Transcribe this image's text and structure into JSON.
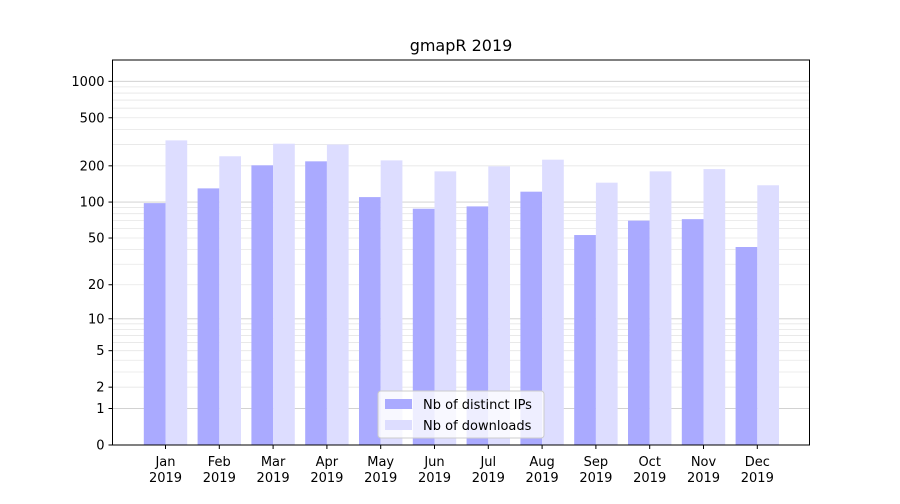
{
  "chart_data": {
    "type": "bar",
    "title": "gmapR 2019",
    "xlabel": "",
    "ylabel": "",
    "y_scale": "symlog",
    "y_ticks": [
      0,
      1,
      2,
      5,
      10,
      20,
      50,
      100,
      200,
      500,
      1000
    ],
    "y_tick_labels": [
      "0",
      "1",
      "2",
      "5",
      "10",
      "20",
      "50",
      "100",
      "200",
      "500",
      "1000"
    ],
    "ylim": [
      0,
      1500
    ],
    "grid": true,
    "legend_position": "bottom-center",
    "categories": [
      [
        "Jan",
        "2019"
      ],
      [
        "Feb",
        "2019"
      ],
      [
        "Mar",
        "2019"
      ],
      [
        "Apr",
        "2019"
      ],
      [
        "May",
        "2019"
      ],
      [
        "Jun",
        "2019"
      ],
      [
        "Jul",
        "2019"
      ],
      [
        "Aug",
        "2019"
      ],
      [
        "Sep",
        "2019"
      ],
      [
        "Oct",
        "2019"
      ],
      [
        "Nov",
        "2019"
      ],
      [
        "Dec",
        "2019"
      ]
    ],
    "series": [
      {
        "name": "Nb of distinct IPs",
        "color": "#aaaaff",
        "values": [
          98,
          130,
          202,
          218,
          110,
          88,
          92,
          122,
          53,
          70,
          72,
          42
        ]
      },
      {
        "name": "Nb of downloads",
        "color": "#ddddff",
        "values": [
          325,
          240,
          305,
          300,
          222,
          180,
          198,
          225,
          145,
          180,
          188,
          138
        ]
      }
    ]
  }
}
